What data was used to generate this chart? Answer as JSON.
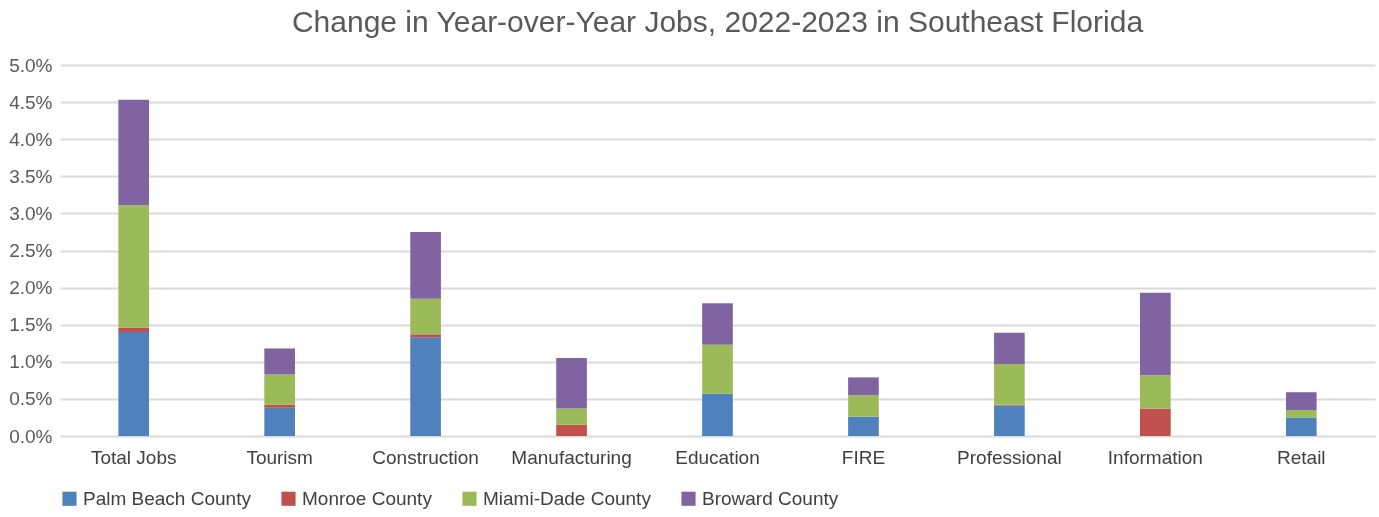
{
  "chart_data": {
    "type": "bar",
    "title": "Change in Year-over-Year Jobs, 2022-2023 in Southeast Florida",
    "stacked": true,
    "categories": [
      "Total Jobs",
      "Tourism",
      "Construction",
      "Manufacturing",
      "Education",
      "FIRE",
      "Professional",
      "Information",
      "Retail"
    ],
    "series": [
      {
        "name": "Palm Beach County",
        "color": "#4f81bd",
        "values": [
          1.4,
          0.38,
          1.33,
          0,
          0.57,
          0.26,
          0.41,
          0,
          0.25
        ]
      },
      {
        "name": "Monroe County",
        "color": "#c0504d",
        "values": [
          0.06,
          0.04,
          0.04,
          0.15,
          0,
          0,
          0.01,
          0.37,
          null
        ]
      },
      {
        "name": "Miami-Dade County",
        "color": "#9bbb59",
        "values": [
          1.65,
          0.41,
          0.48,
          0.22,
          0.66,
          0.29,
          0.55,
          0.45,
          0.1
        ]
      },
      {
        "name": "Broward County",
        "color": "#8064a2",
        "values": [
          1.42,
          0.35,
          0.9,
          0.68,
          0.56,
          0.24,
          0.42,
          1.11,
          0.24
        ]
      }
    ],
    "ylim": [
      0,
      5
    ],
    "yticks": [
      {
        "value": 0,
        "label": "0.0%"
      },
      {
        "value": 0.5,
        "label": "0.5%"
      },
      {
        "value": 1,
        "label": "1.0%"
      },
      {
        "value": 1.5,
        "label": "1.5%"
      },
      {
        "value": 2,
        "label": "2.0%"
      },
      {
        "value": 2.5,
        "label": "2.5%"
      },
      {
        "value": 3,
        "label": "3.0%"
      },
      {
        "value": 3.5,
        "label": "3.5%"
      },
      {
        "value": 4,
        "label": "4.0%"
      },
      {
        "value": 4.5,
        "label": "4.5%"
      },
      {
        "value": 5,
        "label": "5.0%"
      }
    ],
    "grid": "y",
    "legend": "bottom"
  }
}
